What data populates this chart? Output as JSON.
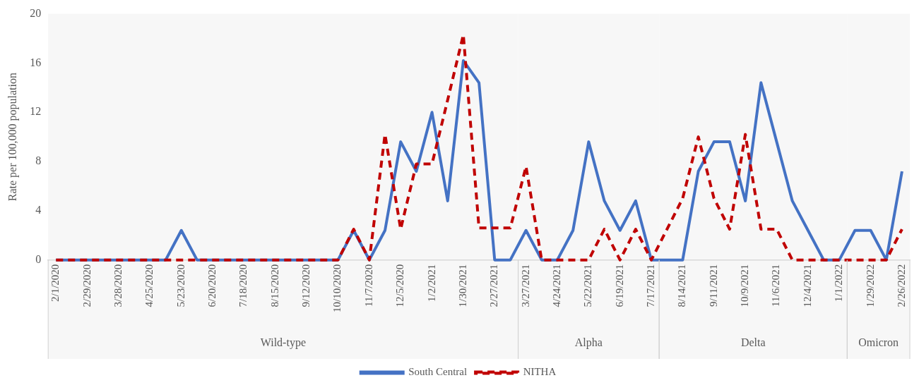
{
  "chart_data": {
    "type": "line",
    "ylabel": "Rate per 100,000 population",
    "x": [
      "2020-02-01",
      "2020-02-15",
      "2020-02-29",
      "2020-03-14",
      "2020-03-28",
      "2020-04-11",
      "2020-04-25",
      "2020-05-09",
      "2020-05-23",
      "2020-06-06",
      "2020-06-20",
      "2020-07-04",
      "2020-07-18",
      "2020-08-01",
      "2020-08-15",
      "2020-08-29",
      "2020-09-12",
      "2020-09-26",
      "2020-10-10",
      "2020-10-24",
      "2020-11-07",
      "2020-11-21",
      "2020-12-05",
      "2020-12-19",
      "2021-01-02",
      "2021-01-16",
      "2021-01-30",
      "2021-02-13",
      "2021-02-27",
      "2021-03-13",
      "2021-03-27",
      "2021-04-10",
      "2021-04-24",
      "2021-05-08",
      "2021-05-22",
      "2021-06-05",
      "2021-06-19",
      "2021-07-03",
      "2021-07-17",
      "2021-07-31",
      "2021-08-14",
      "2021-08-28",
      "2021-09-11",
      "2021-09-25",
      "2021-10-09",
      "2021-10-23",
      "2021-11-06",
      "2021-11-20",
      "2021-12-04",
      "2021-12-18",
      "2022-01-01",
      "2022-01-15",
      "2022-01-29",
      "2022-02-12",
      "2022-02-26"
    ],
    "series": [
      {
        "name": "South Central",
        "color": "#4472c4",
        "line_style": "solid",
        "values": [
          0,
          0,
          0,
          0,
          0,
          0,
          0,
          0,
          2.4,
          0,
          0,
          0,
          0,
          0,
          0,
          0,
          0,
          0,
          0,
          2.4,
          0,
          2.4,
          9.6,
          7.2,
          12,
          4.8,
          16.2,
          14.4,
          0,
          0,
          2.4,
          0,
          0,
          2.4,
          9.6,
          4.8,
          2.4,
          4.8,
          0,
          0,
          0,
          7.2,
          9.6,
          9.6,
          4.8,
          14.4,
          9.6,
          4.8,
          2.4,
          0,
          0,
          2.4,
          2.4,
          0,
          7.2
        ]
      },
      {
        "name": "NITHA",
        "color": "#c00000",
        "line_style": "dashed",
        "values": [
          0,
          0,
          0,
          0,
          0,
          0,
          0,
          0,
          0,
          0,
          0,
          0,
          0,
          0,
          0,
          0,
          0,
          0,
          0,
          2.5,
          0,
          10.2,
          2.5,
          7.8,
          7.8,
          13,
          18.3,
          2.6,
          2.6,
          2.6,
          7.6,
          0,
          0,
          0,
          0,
          2.5,
          0,
          2.5,
          0,
          2.5,
          5,
          10,
          5,
          2.5,
          10.2,
          2.5,
          2.5,
          0,
          0,
          0,
          0,
          0,
          0,
          0,
          2.5
        ]
      }
    ],
    "xlim": [
      "2020-01-25",
      "2022-03-05"
    ],
    "xticks": [
      {
        "value": "2020-02-01",
        "label": "2/1/2020"
      },
      {
        "value": "2020-02-29",
        "label": "2/29/2020"
      },
      {
        "value": "2020-03-28",
        "label": "3/28/2020"
      },
      {
        "value": "2020-04-25",
        "label": "4/25/2020"
      },
      {
        "value": "2020-05-23",
        "label": "5/23/2020"
      },
      {
        "value": "2020-06-20",
        "label": "6/20/2020"
      },
      {
        "value": "2020-07-18",
        "label": "7/18/2020"
      },
      {
        "value": "2020-08-15",
        "label": "8/15/2020"
      },
      {
        "value": "2020-09-12",
        "label": "9/12/2020"
      },
      {
        "value": "2020-10-10",
        "label": "10/10/2020"
      },
      {
        "value": "2020-11-07",
        "label": "11/7/2020"
      },
      {
        "value": "2020-12-05",
        "label": "12/5/2020"
      },
      {
        "value": "2021-01-02",
        "label": "1/2/2021"
      },
      {
        "value": "2021-01-30",
        "label": "1/30/2021"
      },
      {
        "value": "2021-02-27",
        "label": "2/27/2021"
      },
      {
        "value": "2021-03-27",
        "label": "3/27/2021"
      },
      {
        "value": "2021-04-24",
        "label": "4/24/2021"
      },
      {
        "value": "2021-05-22",
        "label": "5/22/2021"
      },
      {
        "value": "2021-06-19",
        "label": "6/19/2021"
      },
      {
        "value": "2021-07-17",
        "label": "7/17/2021"
      },
      {
        "value": "2021-08-14",
        "label": "8/14/2021"
      },
      {
        "value": "2021-09-11",
        "label": "9/11/2021"
      },
      {
        "value": "2021-10-09",
        "label": "10/9/2021"
      },
      {
        "value": "2021-11-06",
        "label": "11/6/2021"
      },
      {
        "value": "2021-12-04",
        "label": "12/4/2021"
      },
      {
        "value": "2022-01-01",
        "label": "1/1/2022"
      },
      {
        "value": "2022-01-29",
        "label": "1/29/2022"
      },
      {
        "value": "2022-02-26",
        "label": "2/26/2022"
      }
    ],
    "ylim": [
      0,
      20
    ],
    "yticks": [
      0,
      4,
      8,
      12,
      16,
      20
    ],
    "bands": [
      {
        "axis": "x",
        "from": "2020-01-25",
        "to": "2021-03-20",
        "label": "Wild-type",
        "color": "#f7f7f7"
      },
      {
        "axis": "x",
        "from": "2021-03-20",
        "to": "2021-07-24",
        "label": "Alpha",
        "color": "#f7f7f7"
      },
      {
        "axis": "x",
        "from": "2021-07-24",
        "to": "2022-01-08",
        "label": "Delta",
        "color": "#f7f7f7"
      },
      {
        "axis": "x",
        "from": "2022-01-08",
        "to": "2022-03-05",
        "label": "Omicron",
        "color": "#f7f7f7"
      }
    ],
    "legend": "bottom",
    "marker": "none"
  }
}
